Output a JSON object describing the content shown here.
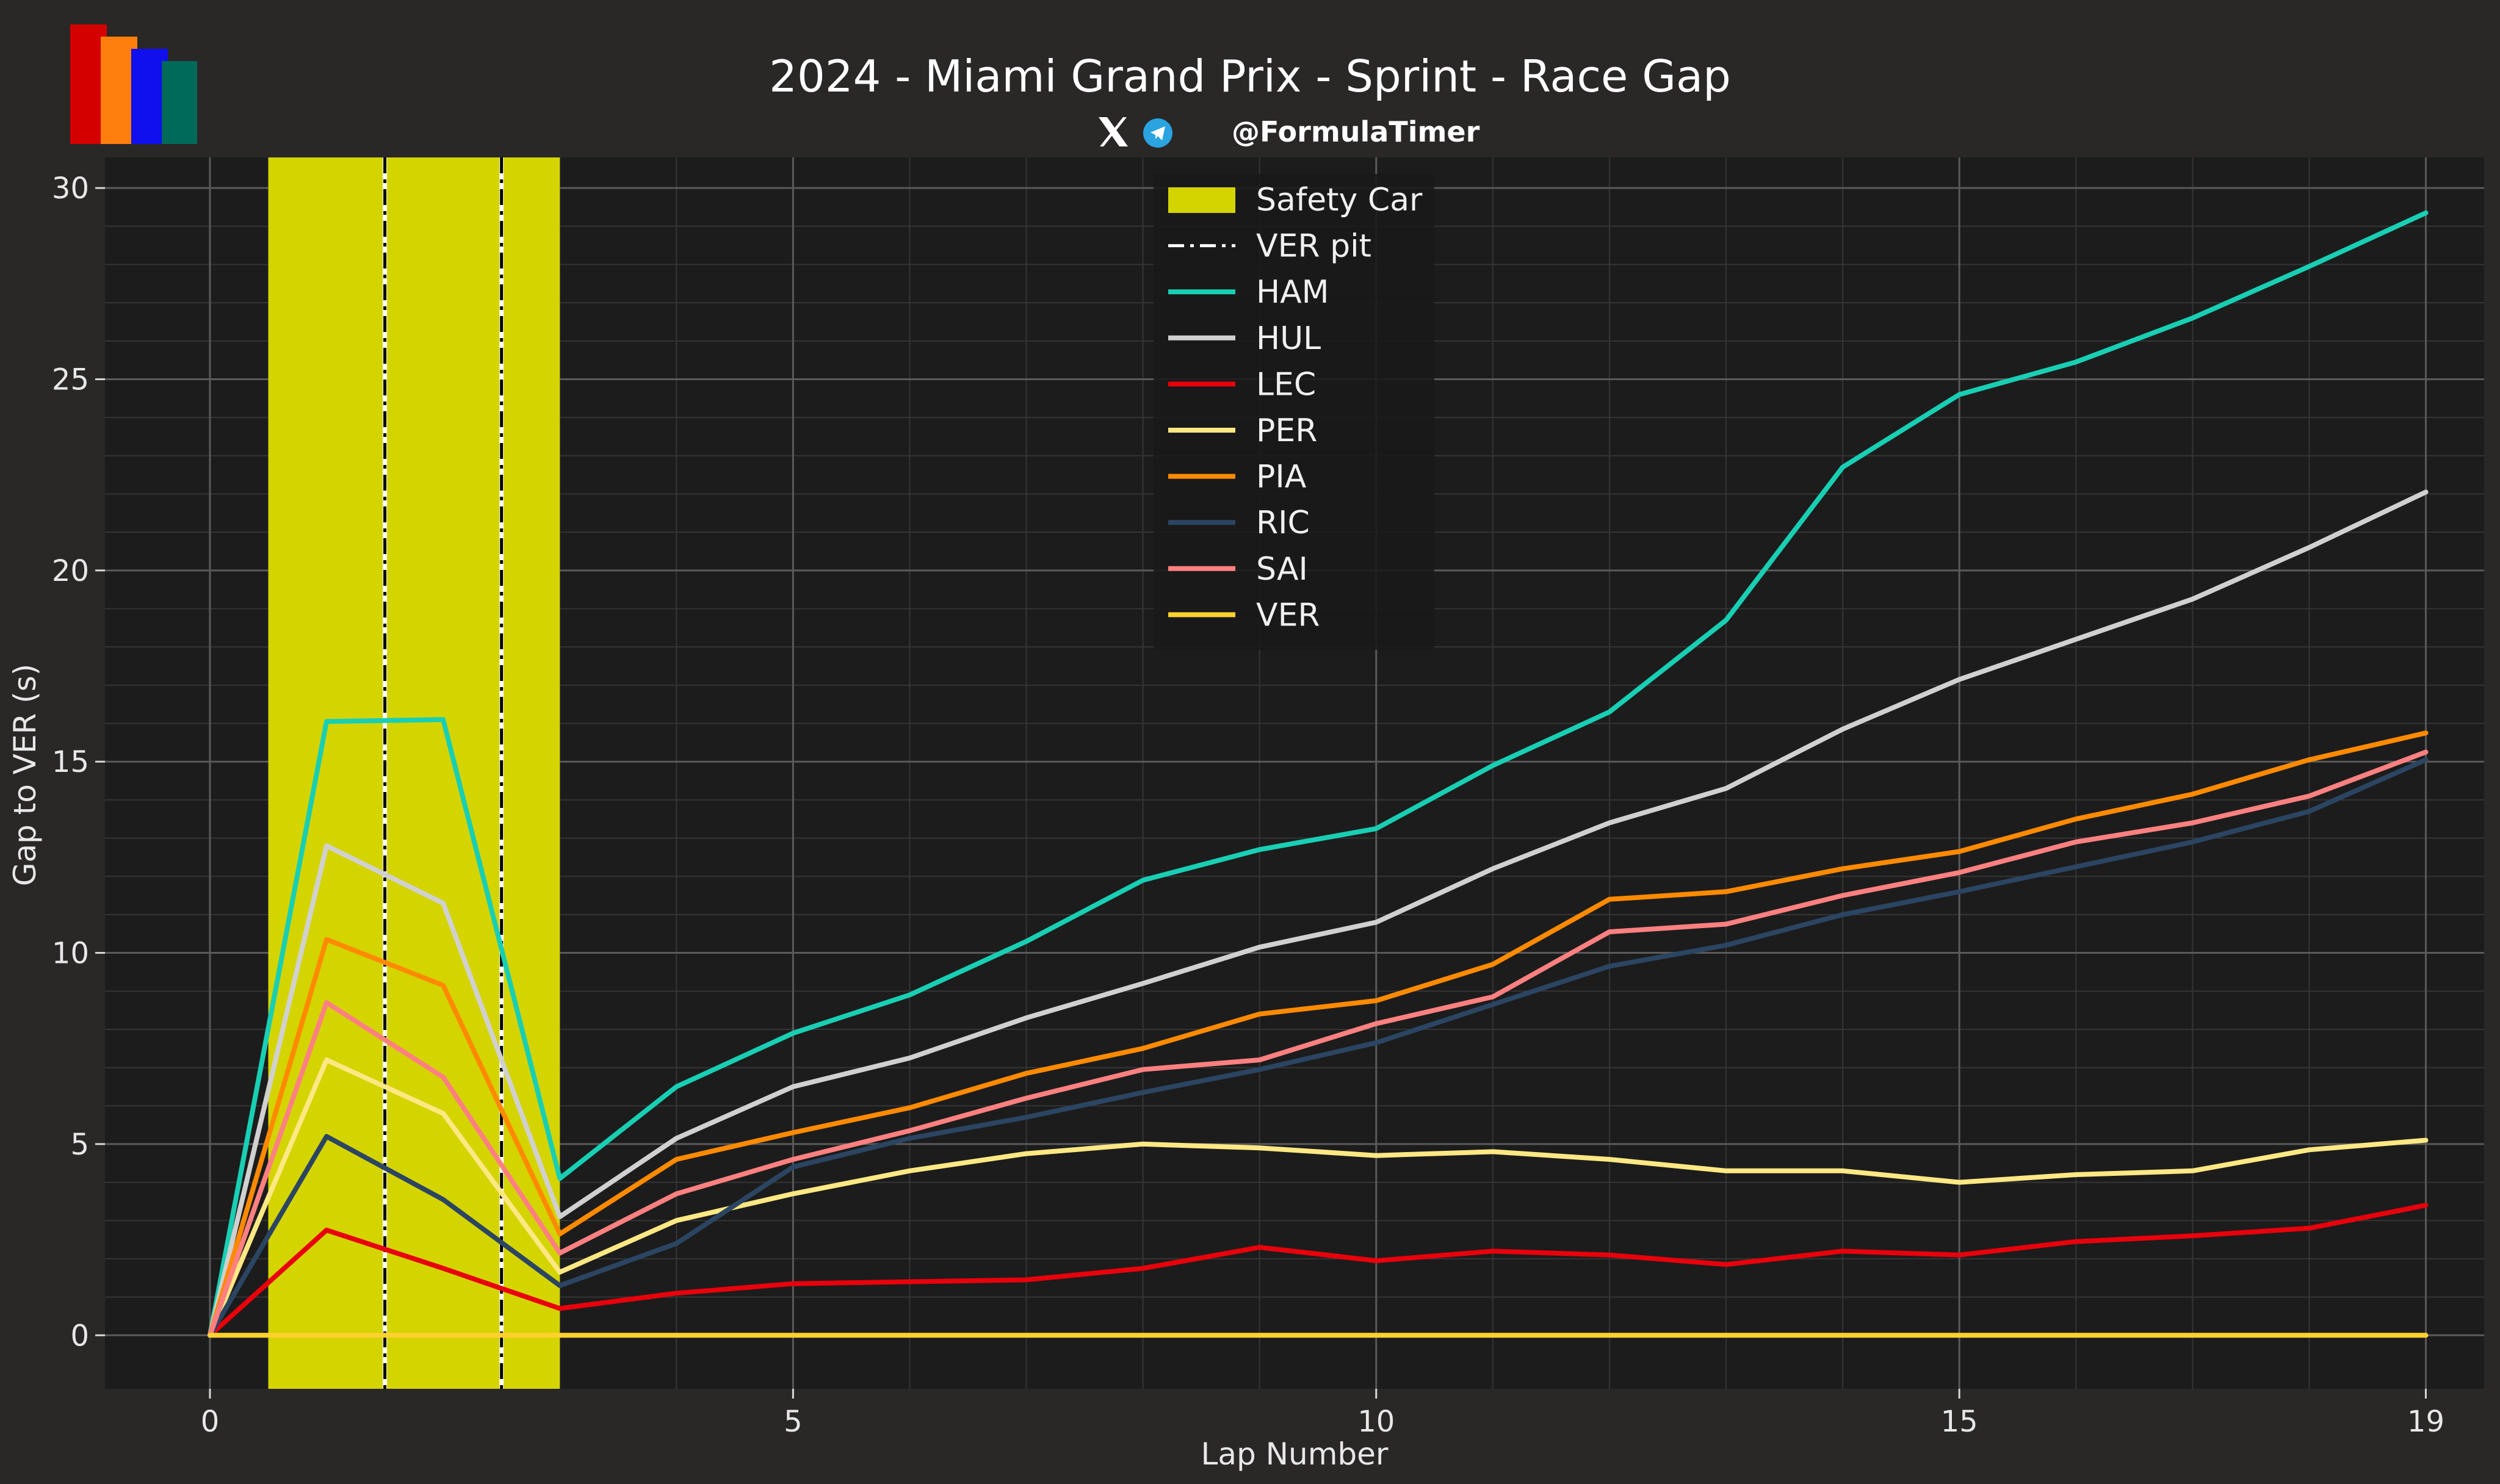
{
  "header": {
    "title": "2024 - Miami Grand Prix - Sprint - Race Gap",
    "handle": "@FormulaTimer",
    "logo_colors": [
      "#d40000",
      "#ff7f0e",
      "#1010ee",
      "#006a5a"
    ]
  },
  "colors": {
    "background": "#2a2727",
    "plot_background": "#1c1c1c",
    "safety_car": "#d4d400",
    "grid_major": "#5a5a5a",
    "grid_minor": "#353535"
  },
  "chart_data": {
    "type": "line",
    "title": "2024 - Miami Grand Prix - Sprint - Race Gap",
    "xlabel": "Lap Number",
    "ylabel": "Gap to VER (s)",
    "xlim": [
      -0.9,
      19.5
    ],
    "ylim": [
      -1.4,
      30.8
    ],
    "xticks": [
      0,
      5,
      10,
      15,
      19
    ],
    "yticks": [
      0,
      5,
      10,
      15,
      20,
      25,
      30
    ],
    "grid": true,
    "legend_position": "top-center",
    "safety_car": {
      "label": "Safety Car",
      "start": 0.5,
      "end": 3.0,
      "color": "#d4d400"
    },
    "pit": {
      "label": "VER pit",
      "laps": [
        1.5,
        2.5
      ]
    },
    "x": [
      0,
      1,
      2,
      3,
      4,
      5,
      6,
      7,
      8,
      9,
      10,
      11,
      12,
      13,
      14,
      15,
      16,
      17,
      18,
      19
    ],
    "series": [
      {
        "name": "HAM",
        "color": "#18cfb4",
        "values": [
          0,
          16.05,
          16.1,
          4.1,
          6.5,
          7.9,
          8.9,
          10.3,
          11.9,
          12.7,
          13.25,
          14.9,
          16.3,
          18.7,
          22.7,
          24.6,
          25.45,
          26.6,
          27.95,
          29.35
        ]
      },
      {
        "name": "HUL",
        "color": "#d0d0d0",
        "values": [
          0,
          12.8,
          11.3,
          3.1,
          5.15,
          6.5,
          7.25,
          8.3,
          9.2,
          10.15,
          10.8,
          12.2,
          13.4,
          14.3,
          15.85,
          17.15,
          18.2,
          19.25,
          20.6,
          22.05
        ]
      },
      {
        "name": "LEC",
        "color": "#e8000b",
        "values": [
          0,
          2.75,
          1.75,
          0.7,
          1.1,
          1.35,
          1.4,
          1.45,
          1.75,
          2.3,
          1.95,
          2.2,
          2.1,
          1.85,
          2.2,
          2.1,
          2.45,
          2.6,
          2.8,
          3.4
        ]
      },
      {
        "name": "PER",
        "color": "#fde883",
        "values": [
          0,
          7.2,
          5.8,
          1.65,
          3.0,
          3.7,
          4.3,
          4.75,
          5.0,
          4.9,
          4.7,
          4.8,
          4.6,
          4.3,
          4.3,
          4.0,
          4.2,
          4.3,
          4.85,
          5.1
        ]
      },
      {
        "name": "PIA",
        "color": "#ff8a00",
        "values": [
          0,
          10.35,
          9.15,
          2.65,
          4.6,
          5.3,
          5.95,
          6.85,
          7.5,
          8.4,
          8.75,
          9.7,
          11.4,
          11.6,
          12.2,
          12.65,
          13.5,
          14.15,
          15.05,
          15.75
        ]
      },
      {
        "name": "RIC",
        "color": "#2b4562",
        "values": [
          0,
          5.2,
          3.55,
          1.3,
          2.4,
          4.4,
          5.15,
          5.7,
          6.35,
          6.95,
          7.65,
          8.65,
          9.65,
          10.2,
          11.0,
          11.6,
          12.25,
          12.9,
          13.7,
          15.05
        ]
      },
      {
        "name": "SAI",
        "color": "#ff8080",
        "values": [
          0,
          8.7,
          6.75,
          2.15,
          3.7,
          4.6,
          5.35,
          6.2,
          6.95,
          7.2,
          8.15,
          8.85,
          10.55,
          10.75,
          11.5,
          12.1,
          12.9,
          13.4,
          14.1,
          15.25
        ]
      },
      {
        "name": "VER",
        "color": "#ffd12e",
        "values": [
          0,
          0,
          0,
          0,
          0,
          0,
          0,
          0,
          0,
          0,
          0,
          0,
          0,
          0,
          0,
          0,
          0,
          0,
          0,
          0
        ]
      }
    ]
  }
}
